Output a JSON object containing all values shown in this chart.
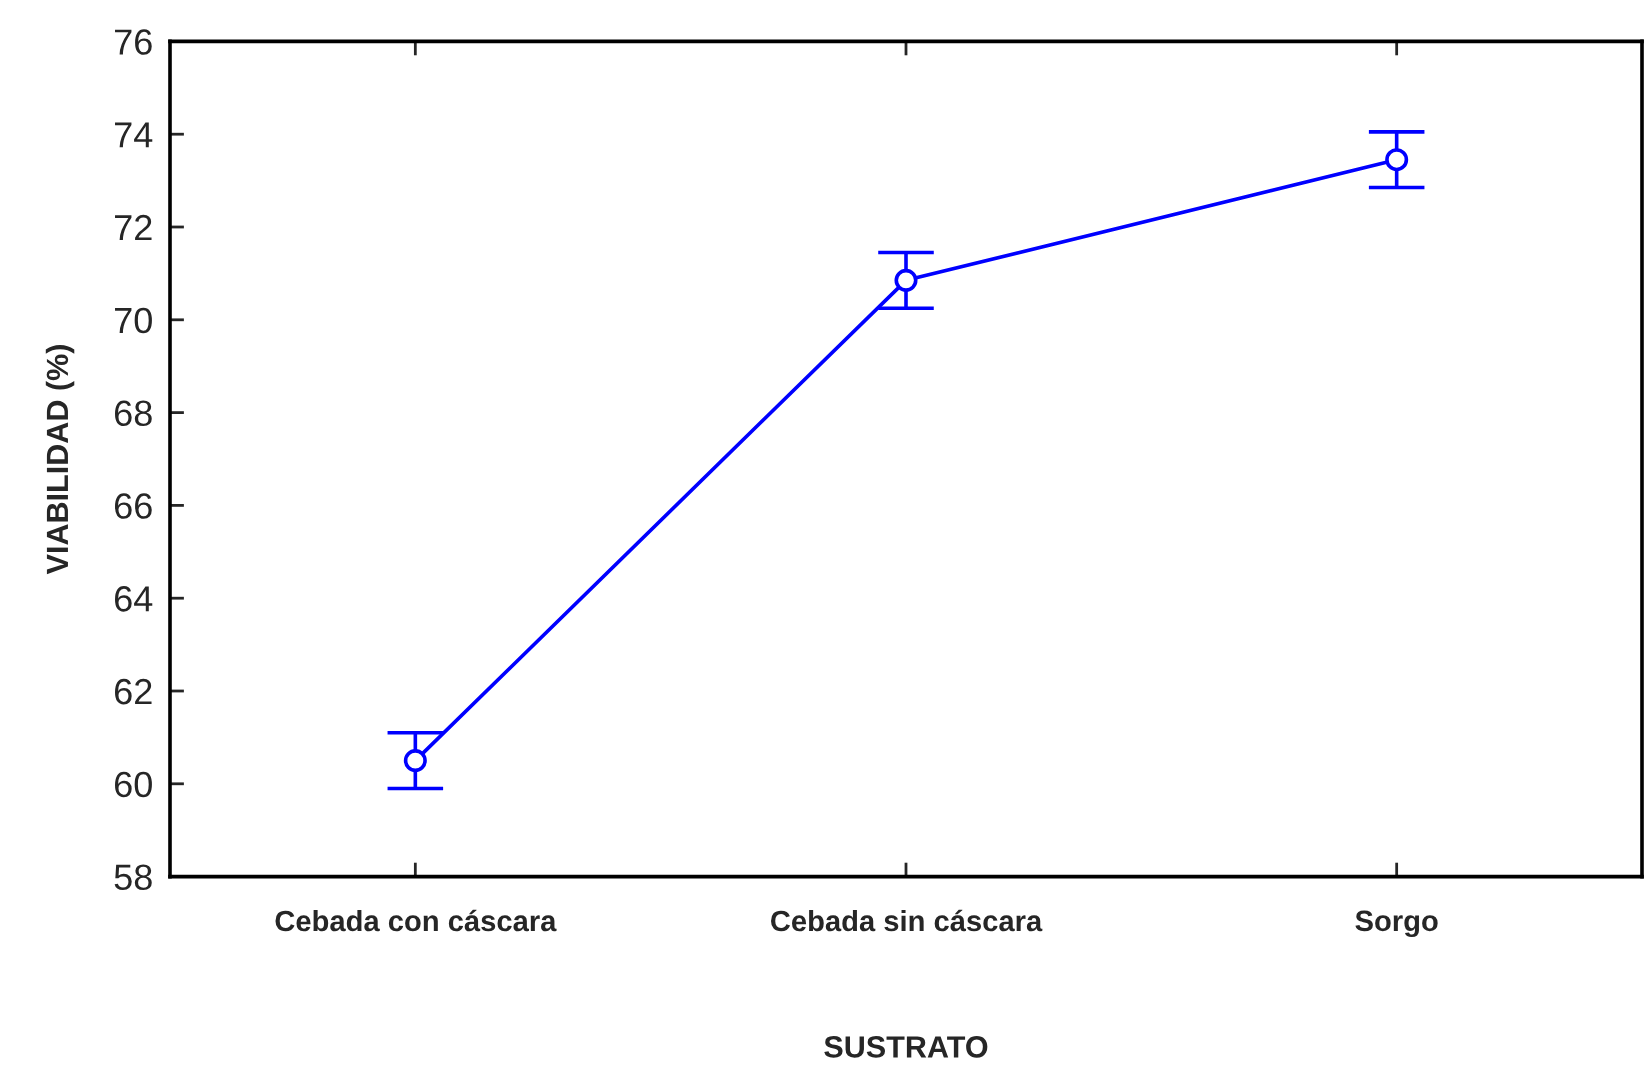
{
  "chart_data": {
    "type": "line",
    "xlabel": "SUSTRATO",
    "ylabel": "VIABILIDAD (%)",
    "categories": [
      "Cebada con cáscara",
      "Cebada sin cáscara",
      "Sorgo"
    ],
    "series": [
      {
        "color": "#0000ff",
        "values": [
          60.5,
          70.85,
          73.45
        ],
        "errors": [
          0.6,
          0.6,
          0.6
        ]
      }
    ],
    "ylim": [
      58,
      76
    ],
    "yticks": [
      58,
      60,
      62,
      64,
      66,
      68,
      70,
      72,
      74,
      76
    ],
    "marker": "circle",
    "line_style": "solid",
    "grid": false
  }
}
